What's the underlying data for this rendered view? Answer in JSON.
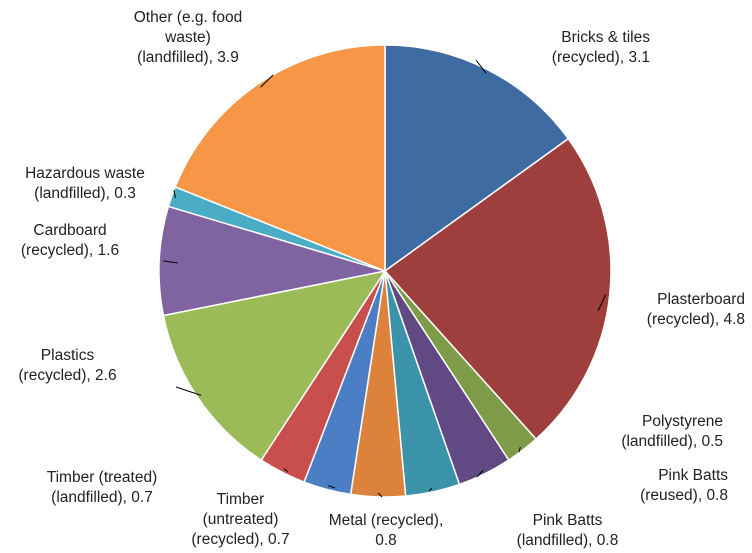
{
  "chart_data": {
    "type": "pie",
    "title": "",
    "start_angle_deg": 0,
    "direction": "clockwise",
    "slices": [
      {
        "lines": [
          "Bricks & tiles",
          "(recycled), 3.1"
        ],
        "value": 3.1,
        "color": "#3F6BA3"
      },
      {
        "lines": [
          "Plasterboard",
          "(recycled), 4.8"
        ],
        "value": 4.8,
        "color": "#9E3F3E"
      },
      {
        "lines": [
          "Polystyrene",
          "(landfilled), 0.5"
        ],
        "value": 0.5,
        "color": "#7D9B48"
      },
      {
        "lines": [
          "Pink Batts",
          "(reused), 0.8"
        ],
        "value": 0.8,
        "color": "#614A84"
      },
      {
        "lines": [
          "Pink Batts",
          "(landfilled), 0.8"
        ],
        "value": 0.8,
        "color": "#3A93A8"
      },
      {
        "lines": [
          "Metal (recycled),",
          "0.8"
        ],
        "value": 0.8,
        "color": "#DC823B"
      },
      {
        "lines": [
          "Timber",
          "(untreated)",
          "(recycled), 0.7"
        ],
        "value": 0.7,
        "color": "#4C7EC6"
      },
      {
        "lines": [
          "Timber (treated)",
          "(landfilled), 0.7"
        ],
        "value": 0.7,
        "color": "#C94F4D"
      },
      {
        "lines": [
          "Plastics",
          "(recycled), 2.6"
        ],
        "value": 2.6,
        "color": "#9BBB59"
      },
      {
        "lines": [
          "Cardboard",
          "(recycled), 1.6"
        ],
        "value": 1.6,
        "color": "#8064A2"
      },
      {
        "lines": [
          "Hazardous waste",
          "(landfilled), 0.3"
        ],
        "value": 0.3,
        "color": "#4BACC6"
      },
      {
        "lines": [
          "Other (e.g. food",
          "waste)",
          "(landfilled), 3.9"
        ],
        "value": 3.9,
        "color": "#F79646"
      }
    ]
  }
}
